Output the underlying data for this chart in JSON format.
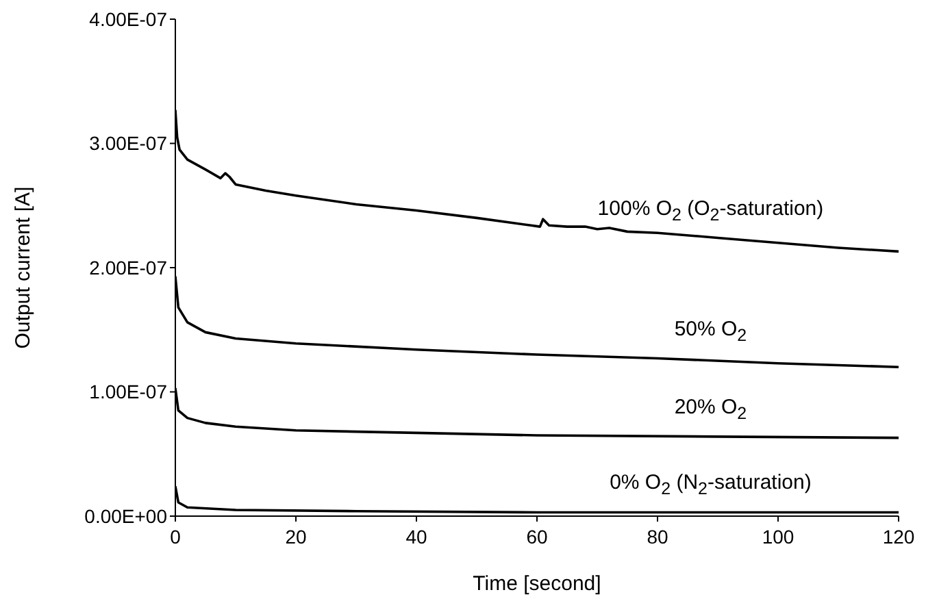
{
  "chart_data": {
    "type": "line",
    "xlabel": "Time [second]",
    "ylabel": "Output current [A]",
    "xlim": [
      0,
      120
    ],
    "xticks": [
      0,
      20,
      40,
      60,
      80,
      100,
      120
    ],
    "ylim": [
      0,
      4e-07
    ],
    "yticks": [
      {
        "value": 0,
        "label": "0.00E+00"
      },
      {
        "value": 1e-07,
        "label": "1.00E-07"
      },
      {
        "value": 2e-07,
        "label": "2.00E-07"
      },
      {
        "value": 3e-07,
        "label": "3.00E-07"
      },
      {
        "value": 4e-07,
        "label": "4.00E-07"
      }
    ],
    "series": [
      {
        "name": "100% O$_{2}$ (O$_{2}$-saturation)",
        "color": "#000000",
        "x": [
          0,
          0.3,
          0.7,
          2,
          5,
          7.5,
          8.3,
          9,
          10,
          15,
          20,
          30,
          40,
          50,
          59,
          60.5,
          61,
          62,
          65,
          68,
          70,
          72,
          75,
          80,
          90,
          100,
          110,
          120
        ],
        "values": [
          3.27e-07,
          3.05e-07,
          2.95e-07,
          2.87e-07,
          2.79e-07,
          2.72e-07,
          2.76e-07,
          2.73e-07,
          2.67e-07,
          2.62e-07,
          2.58e-07,
          2.51e-07,
          2.46e-07,
          2.4e-07,
          2.34e-07,
          2.33e-07,
          2.39e-07,
          2.34e-07,
          2.33e-07,
          2.33e-07,
          2.31e-07,
          2.32e-07,
          2.29e-07,
          2.28e-07,
          2.24e-07,
          2.2e-07,
          2.16e-07,
          2.13e-07
        ]
      },
      {
        "name": "50% O$_{2}$",
        "color": "#000000",
        "x": [
          0,
          0.5,
          2,
          5,
          10,
          20,
          40,
          60,
          80,
          100,
          120
        ],
        "values": [
          1.93e-07,
          1.68e-07,
          1.56e-07,
          1.48e-07,
          1.43e-07,
          1.39e-07,
          1.34e-07,
          1.3e-07,
          1.27e-07,
          1.23e-07,
          1.2e-07
        ]
      },
      {
        "name": "20% O$_{2}$",
        "color": "#000000",
        "x": [
          0,
          0.5,
          2,
          5,
          10,
          20,
          40,
          60,
          90,
          120
        ],
        "values": [
          1.03e-07,
          8.5e-08,
          7.9e-08,
          7.5e-08,
          7.2e-08,
          6.9e-08,
          6.7e-08,
          6.5e-08,
          6.4e-08,
          6.3e-08
        ]
      },
      {
        "name": "0% O$_{2}$ (N$_{2}$-saturation)",
        "color": "#000000",
        "x": [
          0,
          0.5,
          2,
          10,
          30,
          60,
          120
        ],
        "values": [
          2.4e-08,
          1.1e-08,
          7e-09,
          5e-09,
          4e-09,
          3e-09,
          3e-09
        ]
      }
    ]
  }
}
